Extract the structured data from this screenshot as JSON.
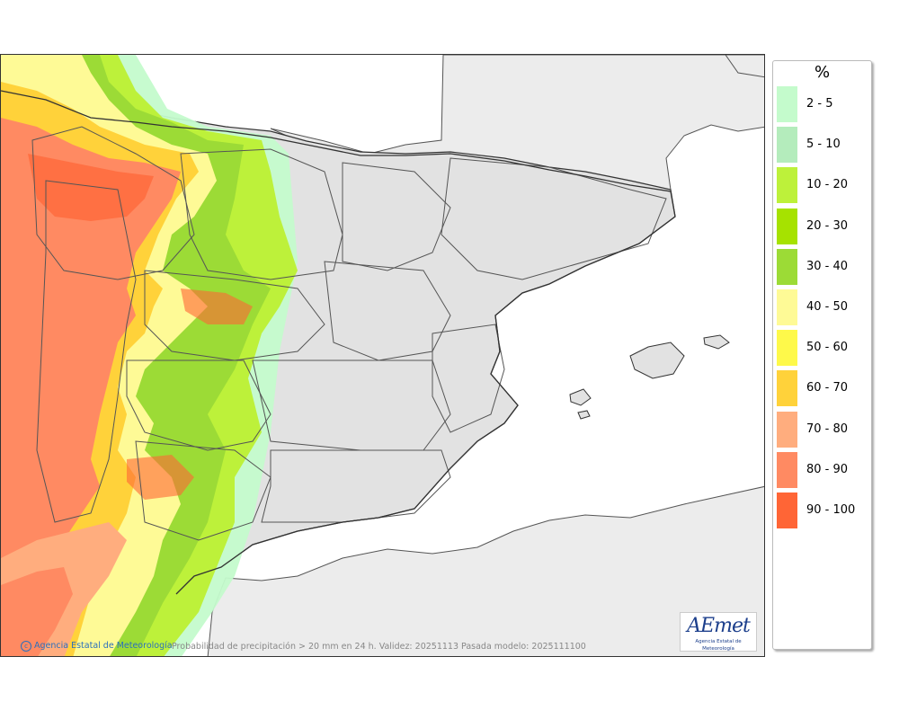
{
  "map": {
    "credit": "Agencia Estatal de Meteorología",
    "caption": "Probabilidad de precipitación > 20 mm en 24 h. Validez: 20251113 Pasada modelo: 2025111100",
    "logo_text": "AEmet",
    "logo_subtext": "Agencia Estatal de Meteorología"
  },
  "legend": {
    "title": "%",
    "items": [
      {
        "label": "2 - 5",
        "color": "#c4fbcc"
      },
      {
        "label": "5 - 10",
        "color": "#b4ecbc"
      },
      {
        "label": "10 - 20",
        "color": "#bdf13a"
      },
      {
        "label": "20 - 30",
        "color": "#a6e200"
      },
      {
        "label": "30 - 40",
        "color": "#9cdb36"
      },
      {
        "label": "40 - 50",
        "color": "#fefa96"
      },
      {
        "label": "50 - 60",
        "color": "#fef94a"
      },
      {
        "label": "60 - 70",
        "color": "#ffd23a"
      },
      {
        "label": "70 - 80",
        "color": "#ffad7e"
      },
      {
        "label": "80 - 90",
        "color": "#ff8a62"
      },
      {
        "label": "90 - 100",
        "color": "#ff6536"
      }
    ]
  }
}
